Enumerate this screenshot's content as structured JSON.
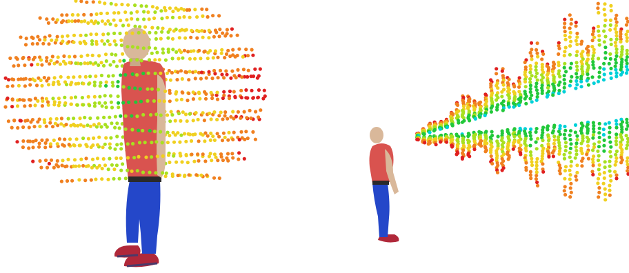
{
  "panels": [
    {
      "id": "front-view",
      "subject": "human-figure",
      "point_cloud": "ellipsoidal-volume",
      "figure_colors": {
        "skin": "#d9b89a",
        "shirt": "#d9534f",
        "pants": "#2447c9",
        "shoes": "#b0283a"
      }
    },
    {
      "id": "side-view",
      "subject": "human-figure",
      "point_cloud": "conical-volume",
      "figure_colors": {
        "skin": "#d9b89a",
        "shirt": "#d9534f",
        "pants": "#2447c9",
        "shoes": "#b0283a"
      }
    }
  ],
  "color_scale": [
    "#00d0d8",
    "#22c83a",
    "#a8e020",
    "#f0d020",
    "#f08020",
    "#e02020"
  ]
}
